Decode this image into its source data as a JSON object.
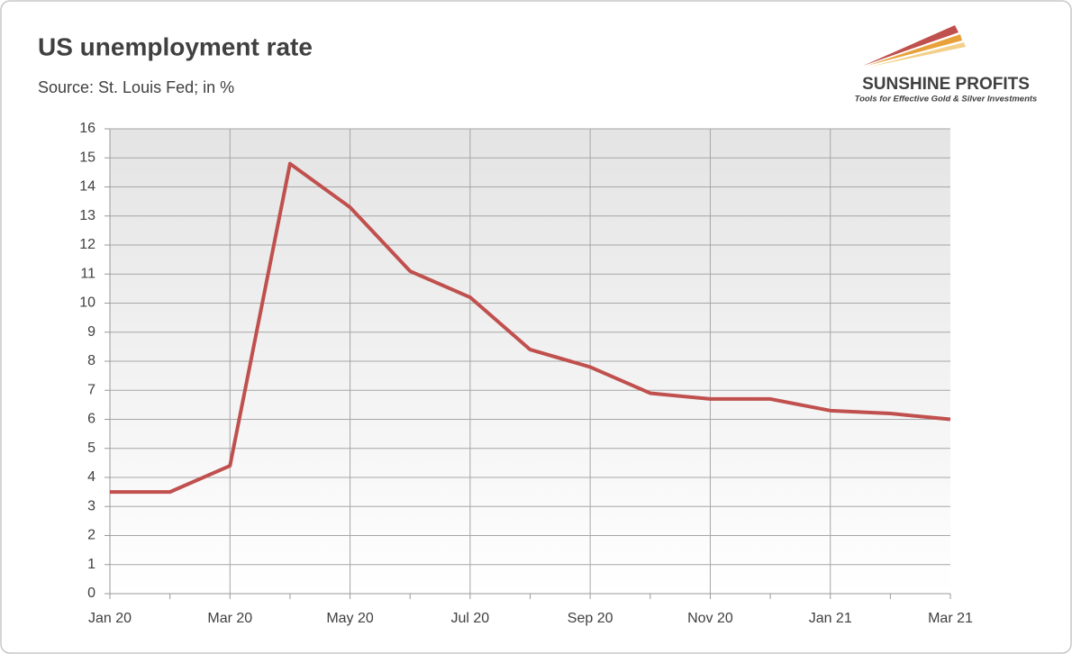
{
  "chart_data": {
    "type": "line",
    "title": "US unemployment rate",
    "subtitle": "Source: St. Louis Fed; in %",
    "categories": [
      "Jan 20",
      null,
      "Mar 20",
      null,
      "May 20",
      null,
      "Jul 20",
      null,
      "Sep 20",
      null,
      "Nov 20",
      null,
      "Jan 21",
      null,
      "Mar 21"
    ],
    "series": [
      {
        "name": "US unemployment rate",
        "color": "#c0504d",
        "values": [
          3.5,
          3.5,
          4.4,
          14.8,
          13.3,
          11.1,
          10.2,
          8.4,
          7.8,
          6.9,
          6.7,
          6.7,
          6.3,
          6.2,
          6.0
        ]
      }
    ],
    "ylim": [
      0,
      16
    ],
    "yticks": [
      0,
      1,
      2,
      3,
      4,
      5,
      6,
      7,
      8,
      9,
      10,
      11,
      12,
      13,
      14,
      15,
      16
    ],
    "grid": true
  },
  "logo": {
    "name": "SUNSHINE PROFITS",
    "tagline": "Tools for Effective Gold & Silver Investments"
  }
}
